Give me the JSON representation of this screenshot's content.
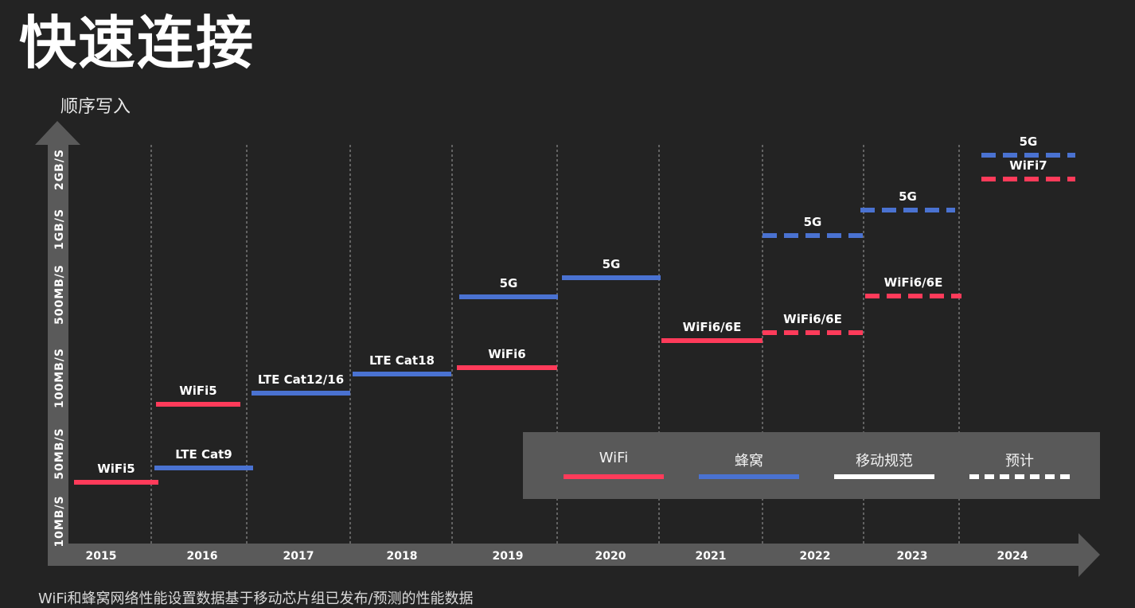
{
  "title": "快速连接",
  "y_axis_title": "顺序写入",
  "footnote": "WiFi和蜂窝网络性能设置数据基于移动芯片组已发布/预测的性能数据",
  "colors": {
    "wifi": "#ff3b5a",
    "cellular": "#4a72d1",
    "axis": "#5a5a5a",
    "grid": "#a0a0a0",
    "background": "#232323"
  },
  "legend": [
    {
      "label": "WiFi",
      "color": "#ff3b5a",
      "style": "solid"
    },
    {
      "label": "蜂窝",
      "color": "#4a72d1",
      "style": "solid"
    },
    {
      "label": "移动规范",
      "color": "#ffffff",
      "style": "solid"
    },
    {
      "label": "预计",
      "color": "#ffffff",
      "style": "dashed"
    }
  ],
  "chart_data": {
    "type": "line",
    "title": "快速连接",
    "ylabel": "顺序写入",
    "x_categories": [
      "2015",
      "2016",
      "2017",
      "2018",
      "2019",
      "2020",
      "2021",
      "2022",
      "2023",
      "2024"
    ],
    "y_tick_labels": [
      "10MB/S",
      "50MB/S",
      "100MB/S",
      "500MB/S",
      "1GB/S",
      "2GB/S"
    ],
    "grid": "vertical dashed",
    "legend_position": "bottom-right",
    "segments": [
      {
        "label": "WiFi5",
        "series": "WiFi",
        "year": "2015",
        "level": "50MB/S",
        "projected": false
      },
      {
        "label": "LTE Cat9",
        "series": "蜂窝",
        "year": "2016",
        "level": "50MB/S",
        "projected": false
      },
      {
        "label": "WiFi5",
        "series": "WiFi",
        "year": "2016",
        "level": "100MB/S",
        "projected": false
      },
      {
        "label": "LTE Cat12/16",
        "series": "蜂窝",
        "year": "2017",
        "level": "100MB/S",
        "projected": false
      },
      {
        "label": "LTE Cat18",
        "series": "蜂窝",
        "year": "2018",
        "level": "100MB/S",
        "projected": false
      },
      {
        "label": "WiFi6",
        "series": "WiFi",
        "year": "2019",
        "level": "100MB/S",
        "projected": false
      },
      {
        "label": "5G",
        "series": "蜂窝",
        "year": "2019",
        "level": "500MB/S",
        "projected": false
      },
      {
        "label": "5G",
        "series": "蜂窝",
        "year": "2020",
        "level": "500MB/S",
        "projected": false
      },
      {
        "label": "WiFi6/6E",
        "series": "WiFi",
        "year": "2021",
        "level": "500MB/S",
        "projected": false
      },
      {
        "label": "WiFi6/6E",
        "series": "WiFi",
        "year": "2022",
        "level": "500MB/S",
        "projected": true
      },
      {
        "label": "5G",
        "series": "蜂窝",
        "year": "2022",
        "level": "1GB/S",
        "projected": true
      },
      {
        "label": "WiFi6/6E",
        "series": "WiFi",
        "year": "2023",
        "level": "500MB/S",
        "projected": true
      },
      {
        "label": "5G",
        "series": "蜂窝",
        "year": "2023",
        "level": "1GB/S",
        "projected": true
      },
      {
        "label": "5G",
        "series": "蜂窝",
        "year": "2024",
        "level": "2GB/S",
        "projected": true
      },
      {
        "label": "WiFi7",
        "series": "WiFi",
        "year": "2024",
        "level": "2GB/S",
        "projected": true
      }
    ]
  }
}
